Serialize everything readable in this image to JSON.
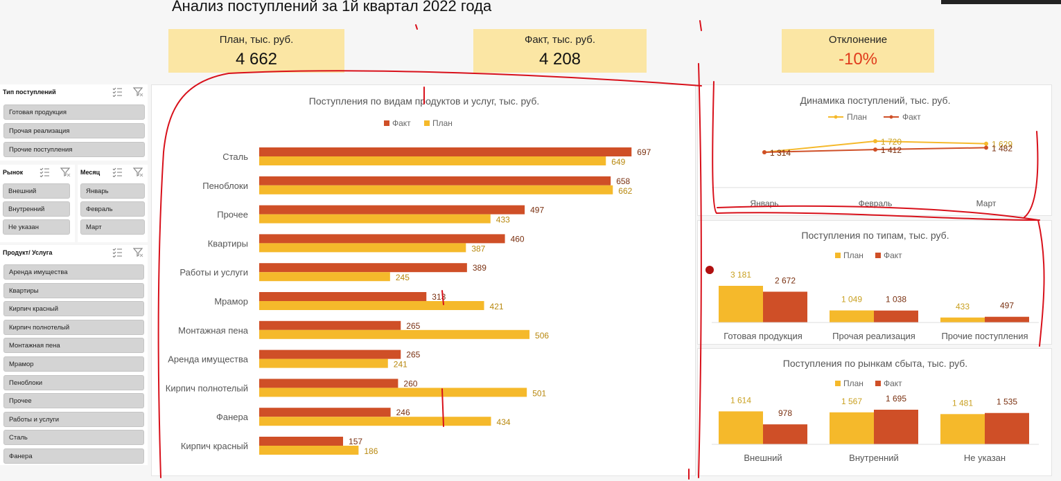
{
  "title": "Анализ поступлений за 1й квартал 2022 года",
  "kpis": {
    "plan": {
      "label": "План, тыс. руб.",
      "value": "4 662"
    },
    "fact": {
      "label": "Факт, тыс. руб.",
      "value": "4 208"
    },
    "deviation": {
      "label": "Отклонение",
      "value": "-10%"
    }
  },
  "colors": {
    "fact": "#cf4f27",
    "plan": "#f5b92b",
    "kpi_bg": "#fbe6a4",
    "deviation": "#e03b1c"
  },
  "slicers": {
    "type": {
      "title": "Тип поступлений",
      "items": [
        "Готовая продукция",
        "Прочая реализация",
        "Прочие поступления"
      ]
    },
    "market": {
      "title": "Рынок",
      "items": [
        "Внешний",
        "Внутренний",
        "Не указан"
      ]
    },
    "month": {
      "title": "Месяц",
      "items": [
        "Январь",
        "Февраль",
        "Март"
      ]
    },
    "product": {
      "title": "Продукт/ Услуга",
      "items": [
        "Аренда имущества",
        "Квартиры",
        "Кирпич красный",
        "Кирпич полнотелый",
        "Монтажная пена",
        "Мрамор",
        "Пеноблоки",
        "Прочее",
        "Работы и услуги",
        "Сталь",
        "Фанера"
      ]
    }
  },
  "chart_data": [
    {
      "type": "bar",
      "title": "Поступления по видам продуктов и услуг, тыс. руб.",
      "orientation": "horizontal",
      "categories": [
        "Сталь",
        "Пеноблоки",
        "Прочее",
        "Квартиры",
        "Работы и услуги",
        "Мрамор",
        "Монтажная пена",
        "Аренда имущества",
        "Кирпич полнотелый",
        "Фанера",
        "Кирпич красный"
      ],
      "series": [
        {
          "name": "Факт",
          "values": [
            697,
            658,
            497,
            460,
            389,
            313,
            265,
            265,
            260,
            246,
            157
          ]
        },
        {
          "name": "План",
          "values": [
            649,
            662,
            433,
            387,
            245,
            421,
            506,
            241,
            501,
            434,
            186
          ]
        }
      ],
      "legend": "top"
    },
    {
      "type": "line",
      "title": "Динамика поступлений, тыс. руб.",
      "categories": [
        "Январь",
        "Февраль",
        "Март"
      ],
      "series": [
        {
          "name": "План",
          "values": [
            1314,
            1720,
            1629
          ]
        },
        {
          "name": "Факт",
          "values": [
            1314,
            1412,
            1482
          ]
        }
      ],
      "legend": "top"
    },
    {
      "type": "bar",
      "title": "Поступления по типам, тыс. руб.",
      "categories": [
        "Готовая продукция",
        "Прочая реализация",
        "Прочие поступления"
      ],
      "series": [
        {
          "name": "План",
          "values": [
            3181,
            1049,
            433
          ]
        },
        {
          "name": "Факт",
          "values": [
            2672,
            1038,
            497
          ]
        }
      ],
      "legend": "top"
    },
    {
      "type": "bar",
      "title": "Поступления по рынкам сбыта, тыс. руб.",
      "categories": [
        "Внешний",
        "Внутренний",
        "Не указан"
      ],
      "series": [
        {
          "name": "План",
          "values": [
            1614,
            1567,
            1481
          ]
        },
        {
          "name": "Факт",
          "values": [
            978,
            1695,
            1535
          ]
        }
      ],
      "legend": "top"
    }
  ]
}
